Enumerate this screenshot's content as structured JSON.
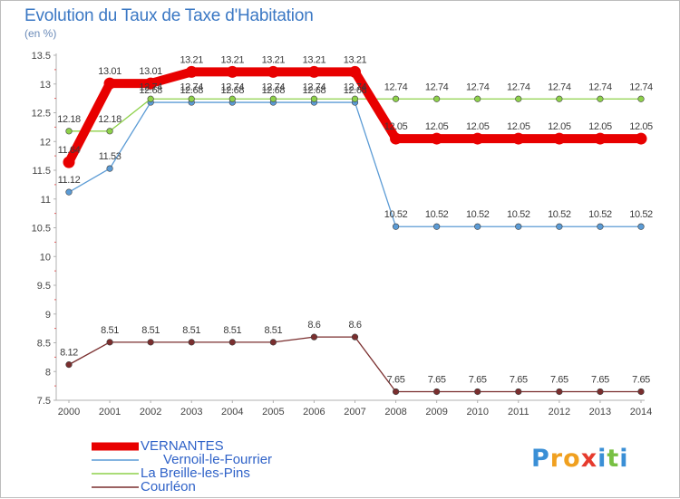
{
  "chart_data": {
    "type": "line",
    "title": "Evolution du Taux de Taxe d'Habitation",
    "subtitle": "(en %)",
    "x": [
      "2000",
      "2001",
      "2002",
      "2003",
      "2004",
      "2005",
      "2006",
      "2007",
      "2008",
      "2009",
      "2010",
      "2011",
      "2012",
      "2013",
      "2014"
    ],
    "ylim": [
      7.5,
      13.5
    ],
    "yticks": [
      "7.5",
      "8",
      "8.5",
      "9",
      "9.5",
      "10",
      "10.5",
      "11",
      "11.5",
      "12",
      "12.5",
      "13",
      "13.5"
    ],
    "grid": false,
    "legend_position": "bottom-left",
    "series": [
      {
        "name": "VERNANTES",
        "color": "#e80000",
        "values": [
          11.64,
          13.01,
          13.01,
          13.21,
          13.21,
          13.21,
          13.21,
          13.21,
          12.05,
          12.05,
          12.05,
          12.05,
          12.05,
          12.05,
          12.05
        ],
        "labels": [
          "11.64",
          "13.01",
          "13.01",
          "13.21",
          "13.21",
          "13.21",
          "13.21",
          "13.21",
          "12.05",
          "12.05",
          "12.05",
          "12.05",
          "12.05",
          "12.05",
          "12.05"
        ]
      },
      {
        "name": "Vernoil-le-Fourrier",
        "color": "#5b9bd5",
        "values": [
          11.12,
          11.53,
          12.68,
          12.68,
          12.68,
          12.68,
          12.68,
          12.68,
          10.52,
          10.52,
          10.52,
          10.52,
          10.52,
          10.52,
          10.52
        ],
        "labels": [
          "11.12",
          "11.53",
          "12.68",
          "12.68",
          "12.68",
          "12.68",
          "12.68",
          "12.68",
          "10.52",
          "10.52",
          "10.52",
          "10.52",
          "10.52",
          "10.52",
          "10.52"
        ]
      },
      {
        "name": "La Breille-les-Pins",
        "color": "#8ed14a",
        "values": [
          12.18,
          12.18,
          12.74,
          12.74,
          12.74,
          12.74,
          12.74,
          12.74,
          12.74,
          12.74,
          12.74,
          12.74,
          12.74,
          12.74,
          12.74
        ],
        "labels": [
          "12.18",
          "12.18",
          "12.74",
          "12.74",
          "12.74",
          "12.74",
          "12.74",
          "12.74",
          "12.74",
          "12.74",
          "12.74",
          "12.74",
          "12.74",
          "12.74",
          "12.74"
        ]
      },
      {
        "name": "Courléon",
        "color": "#7a2e2e",
        "values": [
          8.12,
          8.51,
          8.51,
          8.51,
          8.51,
          8.51,
          8.6,
          8.6,
          7.65,
          7.65,
          7.65,
          7.65,
          7.65,
          7.65,
          7.65
        ],
        "labels": [
          "8.12",
          "8.51",
          "8.51",
          "8.51",
          "8.51",
          "8.51",
          "8.6",
          "8.6",
          "7.65",
          "7.65",
          "7.65",
          "7.65",
          "7.65",
          "7.65",
          "7.65"
        ]
      }
    ]
  },
  "legend": {
    "items": [
      {
        "label": "VERNANTES",
        "color": "#e80000"
      },
      {
        "label": "      Vernoil-le-Fourrier",
        "color": "#5b9bd5"
      },
      {
        "label": "La Breille-les-Pins",
        "color": "#8ed14a"
      },
      {
        "label": "Courléon",
        "color": "#7a2e2e"
      }
    ]
  },
  "logo": {
    "text": "Proxiti",
    "letters": [
      {
        "ch": "P",
        "color": "#3a8fd6"
      },
      {
        "ch": "r",
        "color": "#f0a020"
      },
      {
        "ch": "o",
        "color": "#f0a020"
      },
      {
        "ch": "x",
        "color": "#e63b2e"
      },
      {
        "ch": "i",
        "color": "#3a8fd6"
      },
      {
        "ch": "t",
        "color": "#78c043"
      },
      {
        "ch": "i",
        "color": "#3a8fd6"
      }
    ]
  }
}
